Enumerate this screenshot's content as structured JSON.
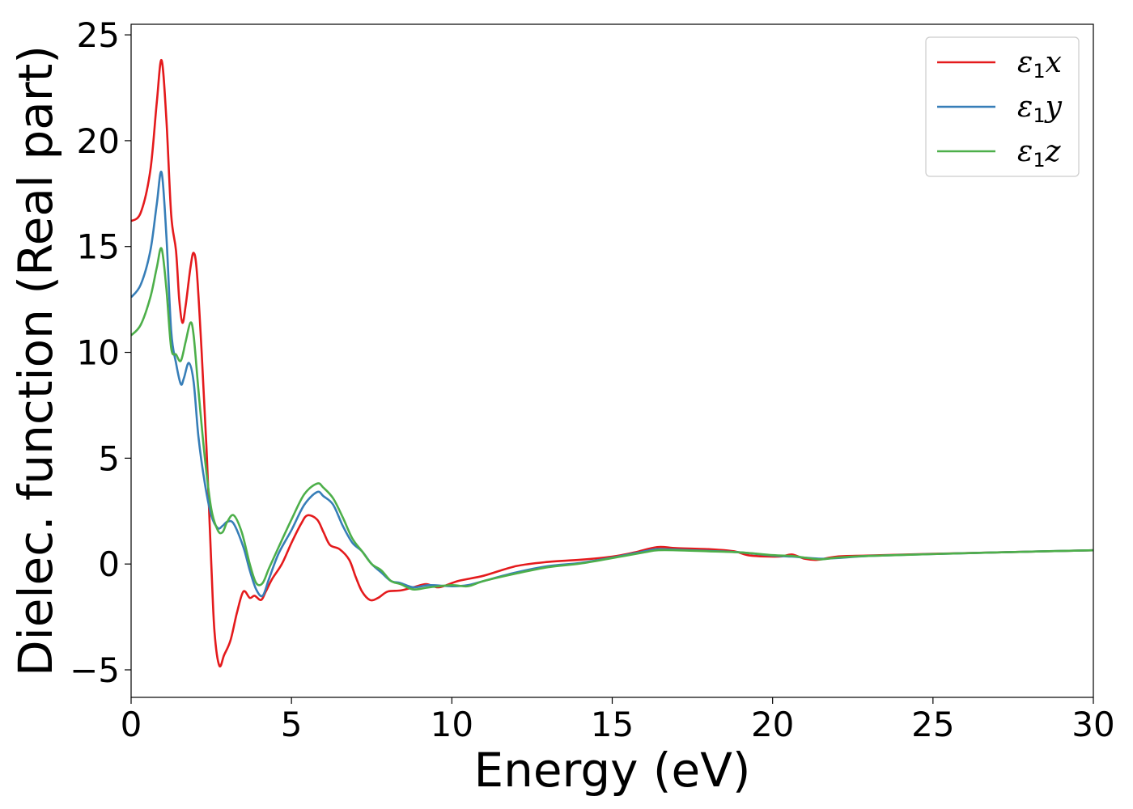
{
  "chart_data": {
    "type": "line",
    "xlabel": "Energy (eV)",
    "ylabel": "Dielec. function (Real part)",
    "xlim": [
      0,
      30
    ],
    "ylim": [
      -6.3,
      25.5
    ],
    "xticks": [
      0,
      5,
      10,
      15,
      20,
      25,
      30
    ],
    "xtick_labels": [
      "0",
      "5",
      "10",
      "15",
      "20",
      "25",
      "30"
    ],
    "yticks": [
      -5,
      0,
      5,
      10,
      15,
      20,
      25
    ],
    "ytick_labels": [
      "−5",
      "0",
      "5",
      "10",
      "15",
      "20",
      "25"
    ],
    "grid": false,
    "legend_position": "top-right",
    "series": [
      {
        "name": "ε₁x",
        "legend": {
          "symbol": "ε",
          "sub": "1",
          "suffix": "x"
        },
        "color": "#e41a1c",
        "points": [
          [
            0,
            16.2
          ],
          [
            0.3,
            16.6
          ],
          [
            0.6,
            18.6
          ],
          [
            0.8,
            21.8
          ],
          [
            0.95,
            23.8
          ],
          [
            1.1,
            21
          ],
          [
            1.25,
            16.5
          ],
          [
            1.4,
            14.8
          ],
          [
            1.5,
            12.5
          ],
          [
            1.6,
            11.4
          ],
          [
            1.7,
            12.2
          ],
          [
            1.85,
            14
          ],
          [
            1.95,
            14.7
          ],
          [
            2.05,
            13.8
          ],
          [
            2.2,
            10
          ],
          [
            2.35,
            5.5
          ],
          [
            2.5,
            0
          ],
          [
            2.6,
            -3.2
          ],
          [
            2.75,
            -4.8
          ],
          [
            2.9,
            -4.3
          ],
          [
            3.1,
            -3.6
          ],
          [
            3.3,
            -2.3
          ],
          [
            3.5,
            -1.3
          ],
          [
            3.7,
            -1.6
          ],
          [
            3.85,
            -1.5
          ],
          [
            4.05,
            -1.7
          ],
          [
            4.2,
            -1.3
          ],
          [
            4.4,
            -0.7
          ],
          [
            4.7,
            0
          ],
          [
            5.0,
            1.0
          ],
          [
            5.3,
            1.9
          ],
          [
            5.5,
            2.3
          ],
          [
            5.8,
            2.1
          ],
          [
            6.0,
            1.5
          ],
          [
            6.2,
            0.9
          ],
          [
            6.5,
            0.7
          ],
          [
            6.8,
            0.2
          ],
          [
            7.0,
            -0.6
          ],
          [
            7.2,
            -1.3
          ],
          [
            7.45,
            -1.7
          ],
          [
            7.7,
            -1.6
          ],
          [
            8.0,
            -1.3
          ],
          [
            8.4,
            -1.25
          ],
          [
            8.8,
            -1.1
          ],
          [
            9.2,
            -0.95
          ],
          [
            9.6,
            -1.1
          ],
          [
            10.2,
            -0.8
          ],
          [
            11,
            -0.55
          ],
          [
            12,
            -0.1
          ],
          [
            13,
            0.1
          ],
          [
            14,
            0.2
          ],
          [
            15,
            0.35
          ],
          [
            15.7,
            0.55
          ],
          [
            16.4,
            0.8
          ],
          [
            17,
            0.75
          ],
          [
            18,
            0.7
          ],
          [
            18.8,
            0.6
          ],
          [
            19.3,
            0.4
          ],
          [
            20.2,
            0.35
          ],
          [
            20.6,
            0.45
          ],
          [
            21,
            0.25
          ],
          [
            21.4,
            0.2
          ],
          [
            22,
            0.35
          ],
          [
            23,
            0.4
          ],
          [
            25,
            0.48
          ],
          [
            27,
            0.55
          ],
          [
            30,
            0.65
          ]
        ]
      },
      {
        "name": "ε₁y",
        "legend": {
          "symbol": "ε",
          "sub": "1",
          "suffix": "y"
        },
        "color": "#377eb8",
        "points": [
          [
            0,
            12.6
          ],
          [
            0.3,
            13.2
          ],
          [
            0.6,
            14.8
          ],
          [
            0.8,
            17
          ],
          [
            0.95,
            18.5
          ],
          [
            1.1,
            15.5
          ],
          [
            1.25,
            11
          ],
          [
            1.4,
            9.5
          ],
          [
            1.55,
            8.5
          ],
          [
            1.65,
            8.8
          ],
          [
            1.8,
            9.5
          ],
          [
            1.95,
            8.6
          ],
          [
            2.1,
            6
          ],
          [
            2.3,
            3.8
          ],
          [
            2.5,
            2.3
          ],
          [
            2.7,
            1.7
          ],
          [
            2.85,
            1.8
          ],
          [
            3.0,
            2.0
          ],
          [
            3.2,
            1.9
          ],
          [
            3.5,
            0.8
          ],
          [
            3.7,
            -0.3
          ],
          [
            3.9,
            -1.2
          ],
          [
            4.1,
            -1.5
          ],
          [
            4.3,
            -0.7
          ],
          [
            4.6,
            0.5
          ],
          [
            5.0,
            1.6
          ],
          [
            5.4,
            2.8
          ],
          [
            5.8,
            3.4
          ],
          [
            6.0,
            3.2
          ],
          [
            6.3,
            2.8
          ],
          [
            6.6,
            1.8
          ],
          [
            6.9,
            1.0
          ],
          [
            7.2,
            0.6
          ],
          [
            7.5,
            0.0
          ],
          [
            7.8,
            -0.4
          ],
          [
            8.1,
            -0.8
          ],
          [
            8.4,
            -0.9
          ],
          [
            8.8,
            -1.1
          ],
          [
            9.3,
            -1.0
          ],
          [
            10,
            -1.05
          ],
          [
            10.5,
            -1.0
          ],
          [
            11,
            -0.8
          ],
          [
            12,
            -0.4
          ],
          [
            13,
            -0.1
          ],
          [
            14,
            0.05
          ],
          [
            15,
            0.3
          ],
          [
            16,
            0.6
          ],
          [
            16.4,
            0.7
          ],
          [
            17,
            0.68
          ],
          [
            18,
            0.62
          ],
          [
            19,
            0.55
          ],
          [
            20,
            0.4
          ],
          [
            20.6,
            0.35
          ],
          [
            21,
            0.3
          ],
          [
            21.5,
            0.25
          ],
          [
            22,
            0.28
          ],
          [
            23,
            0.38
          ],
          [
            25,
            0.47
          ],
          [
            27,
            0.55
          ],
          [
            30,
            0.65
          ]
        ]
      },
      {
        "name": "ε₁z",
        "legend": {
          "symbol": "ε",
          "sub": "1",
          "suffix": "z"
        },
        "color": "#4daf4a",
        "points": [
          [
            0,
            10.8
          ],
          [
            0.3,
            11.3
          ],
          [
            0.6,
            12.6
          ],
          [
            0.8,
            14
          ],
          [
            0.95,
            14.9
          ],
          [
            1.1,
            13
          ],
          [
            1.25,
            10.2
          ],
          [
            1.4,
            9.9
          ],
          [
            1.55,
            9.6
          ],
          [
            1.7,
            10.5
          ],
          [
            1.85,
            11.4
          ],
          [
            1.95,
            10.8
          ],
          [
            2.1,
            8.2
          ],
          [
            2.3,
            5
          ],
          [
            2.5,
            2.6
          ],
          [
            2.7,
            1.6
          ],
          [
            2.85,
            1.5
          ],
          [
            3.0,
            2.0
          ],
          [
            3.2,
            2.3
          ],
          [
            3.45,
            1.5
          ],
          [
            3.7,
            0.0
          ],
          [
            3.9,
            -0.9
          ],
          [
            4.1,
            -0.9
          ],
          [
            4.3,
            -0.2
          ],
          [
            4.6,
            0.8
          ],
          [
            5.0,
            2.1
          ],
          [
            5.4,
            3.3
          ],
          [
            5.8,
            3.8
          ],
          [
            6.0,
            3.6
          ],
          [
            6.3,
            3.1
          ],
          [
            6.6,
            2.2
          ],
          [
            6.9,
            1.2
          ],
          [
            7.2,
            0.6
          ],
          [
            7.5,
            0.0
          ],
          [
            7.8,
            -0.3
          ],
          [
            8.1,
            -0.8
          ],
          [
            8.4,
            -0.95
          ],
          [
            8.8,
            -1.2
          ],
          [
            9.3,
            -1.1
          ],
          [
            10,
            -1.0
          ],
          [
            10.5,
            -1.05
          ],
          [
            11,
            -0.8
          ],
          [
            12,
            -0.45
          ],
          [
            13,
            -0.15
          ],
          [
            14,
            0.02
          ],
          [
            15,
            0.28
          ],
          [
            16,
            0.55
          ],
          [
            16.4,
            0.65
          ],
          [
            17,
            0.65
          ],
          [
            18,
            0.6
          ],
          [
            19,
            0.55
          ],
          [
            20,
            0.42
          ],
          [
            20.6,
            0.38
          ],
          [
            21,
            0.3
          ],
          [
            21.5,
            0.22
          ],
          [
            22,
            0.3
          ],
          [
            23,
            0.38
          ],
          [
            25,
            0.47
          ],
          [
            27,
            0.55
          ],
          [
            30,
            0.65
          ]
        ]
      }
    ]
  }
}
